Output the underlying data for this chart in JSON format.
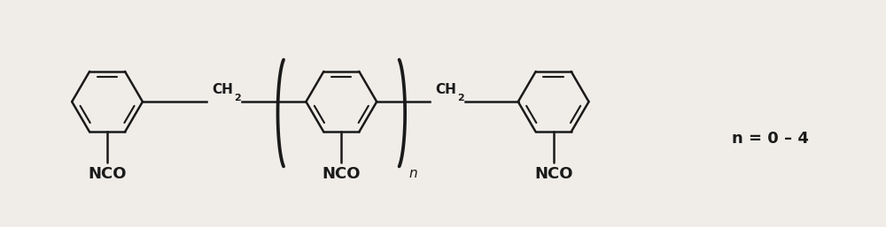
{
  "bg_color": "#f0ede8",
  "line_color": "#1a1a1a",
  "text_color": "#1a1a1a",
  "lw": 1.8,
  "figsize": [
    10.0,
    2.57
  ],
  "dpi": 100,
  "annotation_n": "n = 0 – 4",
  "label_NCO": "NCO",
  "label_CH2_1": "CH",
  "label_CH2_2": "2",
  "label_n": "n"
}
